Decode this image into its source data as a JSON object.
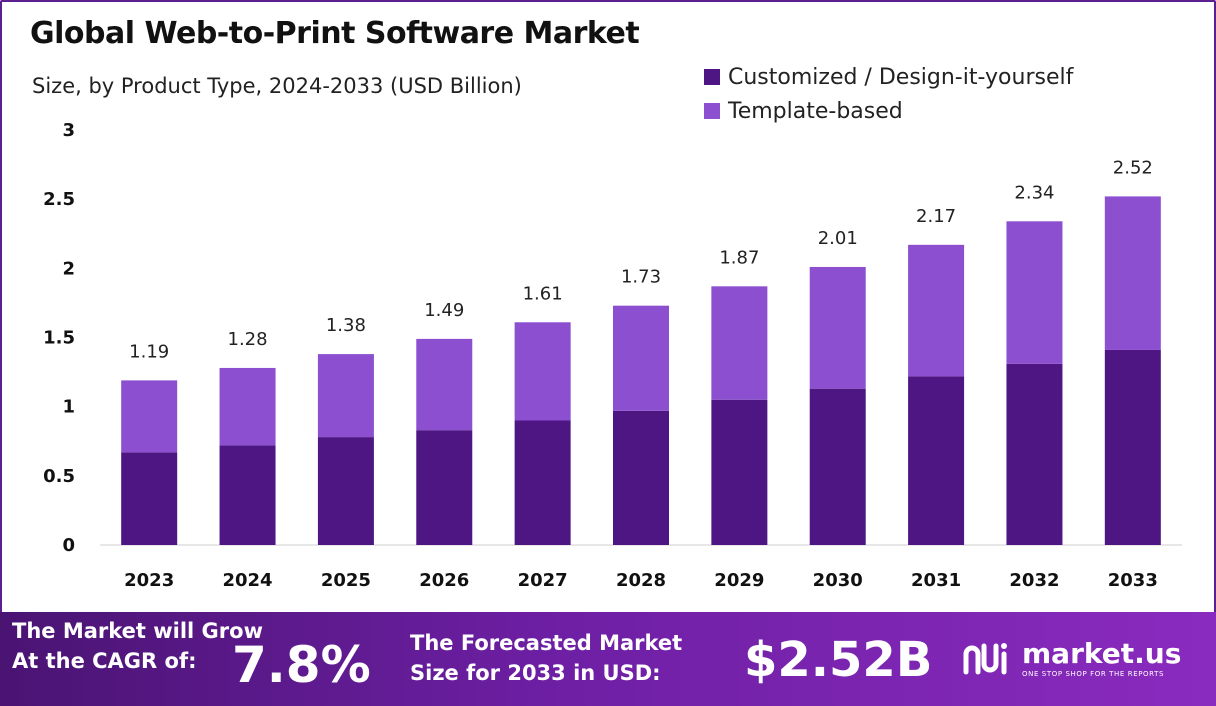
{
  "header": {
    "title": "Global Web-to-Print Software Market",
    "subtitle": "Size, by Product Type, 2024-2033 (USD Billion)"
  },
  "colors": {
    "series1": "#4e1683",
    "series2": "#8c4fd0",
    "border": "#5c1f8f"
  },
  "chart_data": {
    "type": "bar",
    "stacked": true,
    "title": "Global Web-to-Print Software Market",
    "subtitle": "Size, by Product Type, 2024-2033 (USD Billion)",
    "categories": [
      "2023",
      "2024",
      "2025",
      "2026",
      "2027",
      "2028",
      "2029",
      "2030",
      "2031",
      "2032",
      "2033"
    ],
    "series": [
      {
        "name": "Customized / Design-it-yourself",
        "values": [
          0.67,
          0.72,
          0.78,
          0.83,
          0.9,
          0.97,
          1.05,
          1.13,
          1.22,
          1.31,
          1.41
        ]
      },
      {
        "name": "Template-based",
        "values": [
          0.52,
          0.56,
          0.6,
          0.66,
          0.71,
          0.76,
          0.82,
          0.88,
          0.95,
          1.03,
          1.11
        ]
      }
    ],
    "totals": [
      "1.19",
      "1.28",
      "1.38",
      "1.49",
      "1.61",
      "1.73",
      "1.87",
      "2.01",
      "2.17",
      "2.34",
      "2.52"
    ],
    "yticks": [
      "0",
      "0.5",
      "1",
      "1.5",
      "2",
      "2.5",
      "3"
    ],
    "ylim": [
      0,
      3
    ],
    "xlabel": "",
    "ylabel": "",
    "legend_position": "top-right"
  },
  "footer": {
    "cagr_line1": "The Market will Grow",
    "cagr_line2": "At the CAGR of:",
    "cagr_value": "7.8%",
    "forecast_line1": "The Forecasted Market",
    "forecast_line2": "Size for 2033 in USD:",
    "forecast_value": "$2.52B",
    "logo_name": "market.us",
    "logo_tagline": "ONE STOP SHOP FOR THE REPORTS"
  }
}
